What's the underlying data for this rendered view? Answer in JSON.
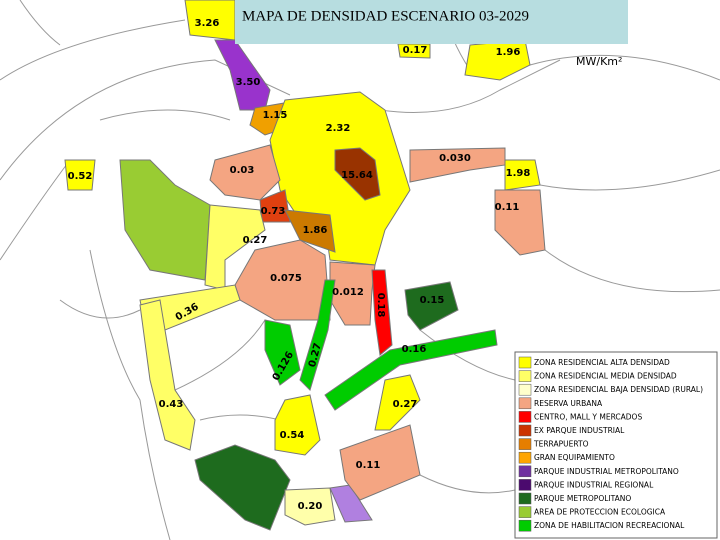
{
  "title": "MAPA DE DENSIDAD ESCENARIO 03-2029",
  "unit": "MW/Km²",
  "zones": [
    {
      "label": "3.26",
      "color": "#ffff00"
    },
    {
      "label": "0.17",
      "color": "#ffff00"
    },
    {
      "label": "1.96",
      "color": "#ffff00"
    },
    {
      "label": "3.50",
      "color": "#9933cc"
    },
    {
      "label": "1.15",
      "color": "#f0a000"
    },
    {
      "label": "2.32",
      "color": "#ffff00"
    },
    {
      "label": "0.03",
      "color": "#f4a582"
    },
    {
      "label": "0.030",
      "color": "#f4a582"
    },
    {
      "label": "1.98",
      "color": "#ffff00"
    },
    {
      "label": "0.52",
      "color": "#ffff00"
    },
    {
      "label": "15.64",
      "color": "#993300"
    },
    {
      "label": "0.73",
      "color": "#e04010"
    },
    {
      "label": "1.86",
      "color": "#cc7a00"
    },
    {
      "label": "0.11",
      "color": "#f4a582"
    },
    {
      "label": "0.27",
      "color": "#ffff66"
    },
    {
      "label": "0.075",
      "color": "#f4a582"
    },
    {
      "label": "0.012",
      "color": "#f4a582"
    },
    {
      "label": "0.18",
      "color": "#ff0000"
    },
    {
      "label": "0.36",
      "color": "#ffff66"
    },
    {
      "label": "0.15",
      "color": "#1e6b1e"
    },
    {
      "label": "0.16",
      "color": "#00cc00"
    },
    {
      "label": "0.126",
      "color": "#00cc00"
    },
    {
      "label": "0.27",
      "color": "#00cc00"
    },
    {
      "label": "0.43",
      "color": "#ffff66"
    },
    {
      "label": "0.27",
      "color": "#ffff00"
    },
    {
      "label": "0.54",
      "color": "#ffff00"
    },
    {
      "label": "0.11",
      "color": "#f4a582"
    },
    {
      "label": "0.20",
      "color": "#ffffaa"
    }
  ],
  "legend": [
    {
      "label": "ZONA RESIDENCIAL ALTA DENSIDAD",
      "color": "#ffff00"
    },
    {
      "label": "ZONA RESIDENCIAL MEDIA DENSIDAD",
      "color": "#ffff66"
    },
    {
      "label": "ZONA RESIDENCIAL BAJA DENSIDAD (RURAL)",
      "color": "#ffffcc"
    },
    {
      "label": "RESERVA URBANA",
      "color": "#f4a582"
    },
    {
      "label": "CENTRO, MALL Y MERCADOS",
      "color": "#ff0000"
    },
    {
      "label": "EX PARQUE INDUSTRIAL",
      "color": "#cc3300"
    },
    {
      "label": "TERRAPUERTO",
      "color": "#e67e00"
    },
    {
      "label": "GRAN EQUIPAMIENTO",
      "color": "#ffa500"
    },
    {
      "label": "PARQUE INDUSTRIAL METROPOLITANO",
      "color": "#7030a0"
    },
    {
      "label": "PARQUE INDUSTRIAL REGIONAL",
      "color": "#4b0a6e"
    },
    {
      "label": "PARQUE METROPOLITANO",
      "color": "#1e6b1e"
    },
    {
      "label": "AREA DE PROTECCION ECOLOGICA",
      "color": "#99cc33"
    },
    {
      "label": "ZONA DE HABILITACION RECREACIONAL",
      "color": "#00cc00"
    }
  ]
}
